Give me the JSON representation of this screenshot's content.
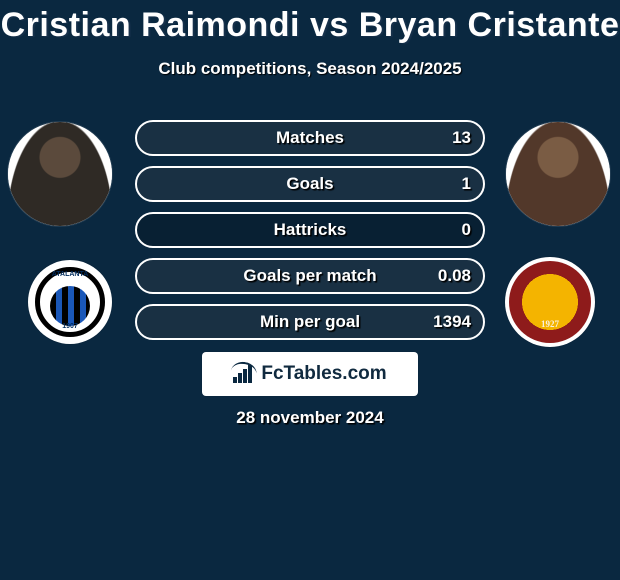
{
  "colors": {
    "background": "#0a2840",
    "text": "#ffffff",
    "shadow": "#000000",
    "pill_border": "#ffffff",
    "pill_fill": "rgba(180,200,220,0.10)",
    "brand_box_bg": "#ffffff",
    "brand_text": "#102a3f"
  },
  "header": {
    "title": "Cristian Raimondi vs Bryan Cristante",
    "subtitle": "Club competitions, Season 2024/2025"
  },
  "players": {
    "left": {
      "name": "Cristian Raimondi",
      "club": "Atalanta",
      "club_year": "1907"
    },
    "right": {
      "name": "Bryan Cristante",
      "club": "Roma",
      "club_year": "1927"
    }
  },
  "stats": {
    "pill_width": 350,
    "pill_height": 36,
    "pill_radius": 18,
    "font_size": 17,
    "rows": [
      {
        "label": "Matches",
        "left": "",
        "right": "13",
        "left_pct": 0,
        "right_pct": 100
      },
      {
        "label": "Goals",
        "left": "",
        "right": "1",
        "left_pct": 0,
        "right_pct": 100
      },
      {
        "label": "Hattricks",
        "left": "",
        "right": "0",
        "left_pct": 0,
        "right_pct": 0
      },
      {
        "label": "Goals per match",
        "left": "",
        "right": "0.08",
        "left_pct": 0,
        "right_pct": 100
      },
      {
        "label": "Min per goal",
        "left": "",
        "right": "1394",
        "left_pct": 0,
        "right_pct": 100
      }
    ]
  },
  "brand": {
    "text": "FcTables.com"
  },
  "date": "28 november 2024"
}
